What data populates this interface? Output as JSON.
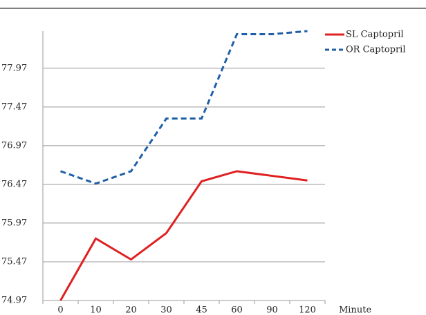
{
  "chart_data": {
    "type": "line",
    "x_label": "Minute",
    "categories": [
      "0",
      "10",
      "20",
      "30",
      "45",
      "60",
      "90",
      "120"
    ],
    "series": [
      {
        "name": "SL Captopril",
        "color": "#e02020",
        "dash": false,
        "values": [
          74.97,
          75.77,
          75.5,
          75.84,
          76.51,
          76.64,
          76.58,
          76.52
        ]
      },
      {
        "name": "OR Captopril",
        "color": "#1f5fa8",
        "dash": true,
        "values": [
          76.64,
          76.48,
          76.64,
          77.32,
          77.32,
          78.41,
          78.41,
          78.45
        ]
      }
    ],
    "ylim": [
      74.97,
      78.45
    ],
    "yticks": [
      74.97,
      75.47,
      75.97,
      76.47,
      76.97,
      77.47,
      77.97
    ],
    "grid": true
  }
}
